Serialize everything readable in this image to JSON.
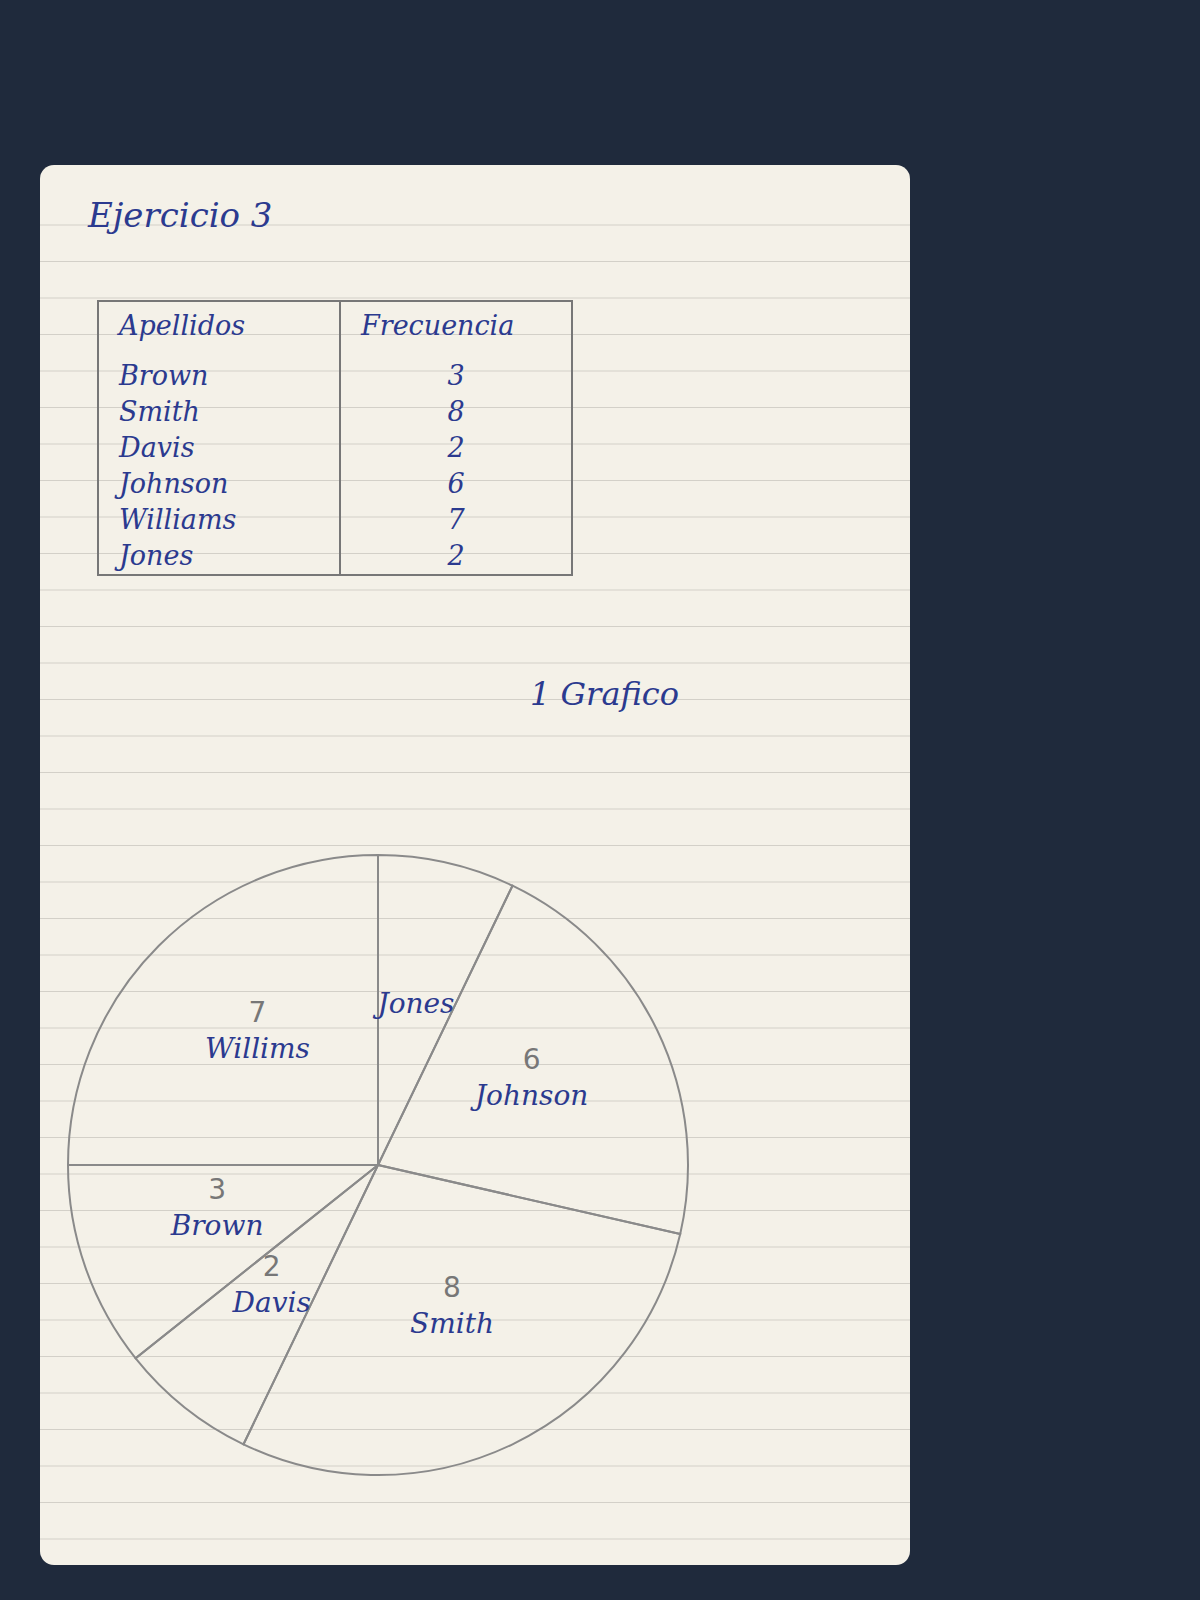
{
  "title": "Ejercicio 3",
  "table": {
    "header": [
      "Apellidos",
      "Frecuencia"
    ],
    "rows": [
      [
        "Brown",
        3
      ],
      [
        "Smith",
        8
      ],
      [
        "Davis",
        2
      ],
      [
        "Johnson",
        6
      ],
      [
        "Williams",
        7
      ],
      [
        "Jones",
        2
      ]
    ]
  },
  "chart_data": {
    "type": "pie",
    "title": "1 Grafico",
    "categories": [
      "Jones",
      "Johnson",
      "Smith",
      "Davis",
      "Brown",
      "Willims"
    ],
    "values": [
      2,
      6,
      8,
      2,
      3,
      7
    ],
    "value_labels": [
      null,
      "6",
      "8",
      "2",
      "3",
      "7"
    ],
    "data_labels": true
  }
}
